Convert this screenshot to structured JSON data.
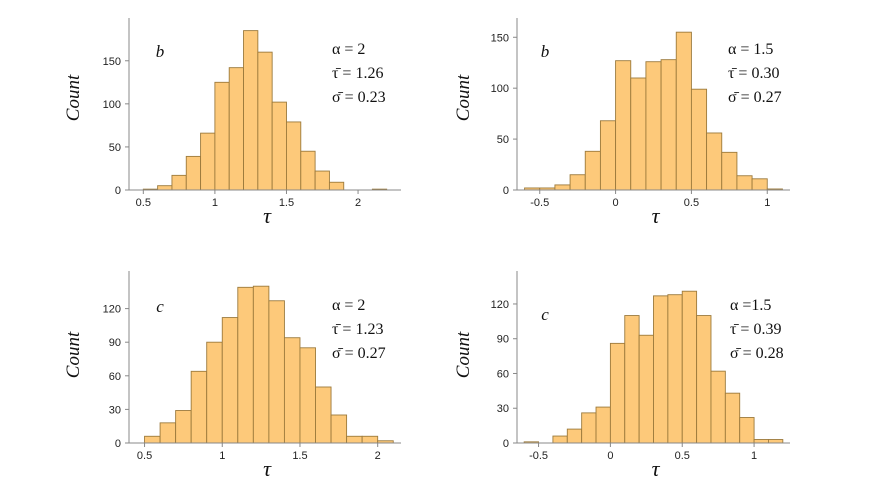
{
  "style": {
    "bar_fill": "#fdc97a",
    "bar_stroke": "#9c7a3c",
    "axis_color": "#888888"
  },
  "chart_data": [
    {
      "type": "bar",
      "panel_label": "b",
      "xlabel": "τ",
      "ylabel": "Count",
      "stats": {
        "alpha": "α = 2",
        "tau_mean": "τ̄ = 1.26",
        "sigma_mean": "σ̄ = 0.23"
      },
      "xlim": [
        0.4,
        2.3
      ],
      "ylim": [
        0,
        195
      ],
      "xticks": [
        0.5,
        1,
        1.5,
        2
      ],
      "xtick_labels": [
        "0.5",
        "1",
        "1.5",
        "2"
      ],
      "yticks": [
        0,
        50,
        100,
        150
      ],
      "ytick_labels": [
        "0",
        "50",
        "100",
        "150"
      ],
      "bin_width": 0.1,
      "bin_starts": [
        0.5,
        0.6,
        0.7,
        0.8,
        0.9,
        1.0,
        1.1,
        1.2,
        1.3,
        1.4,
        1.5,
        1.6,
        1.7,
        1.8,
        1.9,
        2.0,
        2.1
      ],
      "values": [
        1,
        5,
        17,
        39,
        66,
        125,
        142,
        185,
        160,
        102,
        79,
        45,
        22,
        9,
        0,
        0,
        1
      ]
    },
    {
      "type": "bar",
      "panel_label": "b",
      "xlabel": "τ",
      "ylabel": "Count",
      "stats": {
        "alpha": "α = 1.5",
        "tau_mean": "τ̄ = 0.30",
        "sigma_mean": "σ̄ = 0.27"
      },
      "xlim": [
        -0.65,
        1.15
      ],
      "ylim": [
        0,
        165
      ],
      "xticks": [
        -0.5,
        0,
        0.5,
        1
      ],
      "xtick_labels": [
        "-0.5",
        "0",
        "0.5",
        "1"
      ],
      "yticks": [
        0,
        50,
        100,
        150
      ],
      "ytick_labels": [
        "0",
        "50",
        "100",
        "150"
      ],
      "bin_width": 0.1,
      "bin_starts": [
        -0.6,
        -0.5,
        -0.4,
        -0.3,
        -0.2,
        -0.1,
        0.0,
        0.1,
        0.2,
        0.3,
        0.4,
        0.5,
        0.6,
        0.7,
        0.8,
        0.9,
        1.0
      ],
      "values": [
        2,
        2,
        5,
        15,
        38,
        68,
        127,
        110,
        126,
        128,
        155,
        99,
        56,
        37,
        14,
        11,
        1
      ]
    },
    {
      "type": "bar",
      "panel_label": "c",
      "xlabel": "τ",
      "ylabel": "Count",
      "stats": {
        "alpha": "α = 2",
        "tau_mean": "τ̄ = 1.23",
        "sigma_mean": "σ̄ = 0.27"
      },
      "xlim": [
        0.4,
        2.15
      ],
      "ylim": [
        0,
        150
      ],
      "xticks": [
        0.5,
        1,
        1.5,
        2
      ],
      "xtick_labels": [
        "0.5",
        "1",
        "1.5",
        "2"
      ],
      "yticks": [
        0,
        30,
        60,
        90,
        120
      ],
      "ytick_labels": [
        "0",
        "30",
        "60",
        "90",
        "120"
      ],
      "bin_width": 0.1,
      "bin_starts": [
        0.5,
        0.6,
        0.7,
        0.8,
        0.9,
        1.0,
        1.1,
        1.2,
        1.3,
        1.4,
        1.5,
        1.6,
        1.7,
        1.8,
        1.9,
        2.0
      ],
      "values": [
        6,
        18,
        29,
        64,
        90,
        112,
        139,
        140,
        127,
        94,
        85,
        50,
        25,
        6,
        6,
        2
      ]
    },
    {
      "type": "bar",
      "panel_label": "c",
      "xlabel": "τ",
      "ylabel": "Count",
      "stats": {
        "alpha": "α =1.5",
        "tau_mean": "τ̄ = 0.39",
        "sigma_mean": "σ̄ = 0.28"
      },
      "xlim": [
        -0.65,
        1.25
      ],
      "ylim": [
        0,
        145
      ],
      "xticks": [
        -0.5,
        0,
        0.5,
        1
      ],
      "xtick_labels": [
        "-0.5",
        "0",
        "0.5",
        "1"
      ],
      "yticks": [
        0,
        30,
        60,
        90,
        120
      ],
      "ytick_labels": [
        "0",
        "30",
        "60",
        "90",
        "120"
      ],
      "bin_width": 0.1,
      "bin_starts": [
        -0.6,
        -0.5,
        -0.4,
        -0.3,
        -0.2,
        -0.1,
        0.0,
        0.1,
        0.2,
        0.3,
        0.4,
        0.5,
        0.6,
        0.7,
        0.8,
        0.9,
        1.0,
        1.1
      ],
      "values": [
        1,
        0,
        6,
        12,
        26,
        31,
        86,
        110,
        93,
        127,
        128,
        131,
        110,
        62,
        43,
        22,
        3,
        3
      ]
    }
  ]
}
